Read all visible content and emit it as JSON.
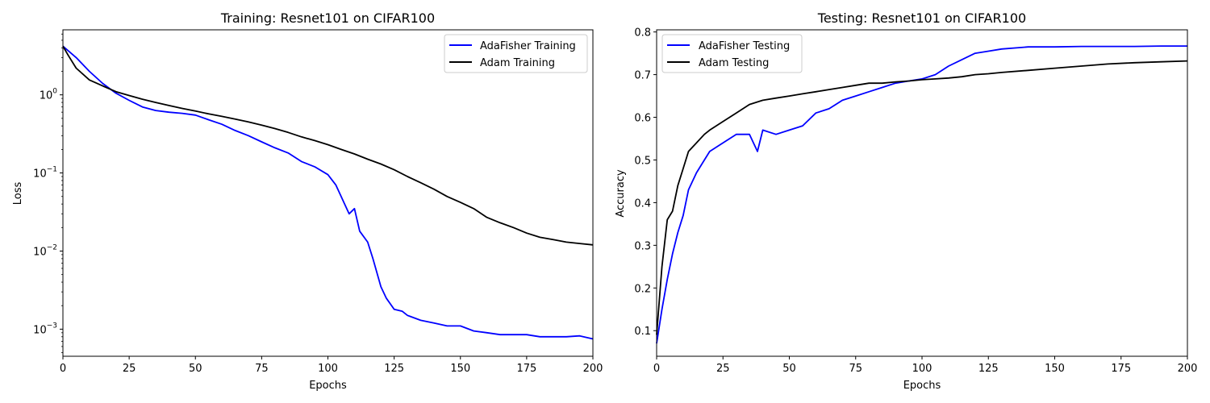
{
  "chart_data": [
    {
      "type": "line",
      "title": "Training: Resnet101 on CIFAR100",
      "xlabel": "Epochs",
      "ylabel": "Loss",
      "xlim": [
        0,
        200
      ],
      "ylim": [
        0.00045,
        6.8
      ],
      "yscale": "log",
      "xticks": [
        0,
        25,
        50,
        75,
        100,
        125,
        150,
        175,
        200
      ],
      "yticks": [
        0.001,
        0.01,
        0.1,
        1
      ],
      "ytick_labels": [
        "10",
        "10",
        "10",
        "10"
      ],
      "ytick_exponents": [
        "−3",
        "−2",
        "−1",
        "0"
      ],
      "grid": false,
      "legend": "top-right",
      "series": [
        {
          "name": "AdaFisher Training",
          "color": "#0000ff",
          "x": [
            0,
            5,
            10,
            15,
            20,
            25,
            30,
            35,
            40,
            45,
            50,
            55,
            60,
            65,
            70,
            75,
            80,
            85,
            90,
            95,
            100,
            103,
            105,
            108,
            110,
            112,
            115,
            117,
            120,
            122,
            125,
            128,
            130,
            135,
            140,
            145,
            150,
            155,
            160,
            165,
            170,
            175,
            180,
            185,
            190,
            195,
            200
          ],
          "y": [
            4.2,
            3.0,
            2.0,
            1.4,
            1.05,
            0.85,
            0.7,
            0.63,
            0.6,
            0.58,
            0.55,
            0.48,
            0.42,
            0.35,
            0.3,
            0.25,
            0.21,
            0.18,
            0.14,
            0.12,
            0.095,
            0.07,
            0.05,
            0.03,
            0.035,
            0.018,
            0.013,
            0.008,
            0.0035,
            0.0025,
            0.0018,
            0.0017,
            0.0015,
            0.0013,
            0.0012,
            0.0011,
            0.0011,
            0.00095,
            0.0009,
            0.00085,
            0.00085,
            0.00085,
            0.0008,
            0.0008,
            0.0008,
            0.00082,
            0.00075
          ]
        },
        {
          "name": "Adam Training",
          "color": "#000000",
          "x": [
            0,
            2,
            5,
            10,
            15,
            20,
            25,
            30,
            35,
            40,
            45,
            50,
            55,
            60,
            65,
            70,
            75,
            80,
            85,
            90,
            95,
            100,
            105,
            110,
            115,
            120,
            125,
            130,
            135,
            140,
            145,
            150,
            155,
            160,
            165,
            170,
            175,
            180,
            185,
            190,
            195,
            200
          ],
          "y": [
            4.2,
            3.2,
            2.2,
            1.55,
            1.3,
            1.1,
            0.98,
            0.88,
            0.8,
            0.73,
            0.67,
            0.62,
            0.57,
            0.53,
            0.49,
            0.45,
            0.41,
            0.37,
            0.33,
            0.29,
            0.26,
            0.23,
            0.2,
            0.175,
            0.15,
            0.13,
            0.11,
            0.09,
            0.075,
            0.062,
            0.05,
            0.042,
            0.035,
            0.027,
            0.023,
            0.02,
            0.017,
            0.015,
            0.014,
            0.013,
            0.0125,
            0.012
          ]
        }
      ]
    },
    {
      "type": "line",
      "title": "Testing: Resnet101 on CIFAR100",
      "xlabel": "Epochs",
      "ylabel": "Accuracy",
      "xlim": [
        0,
        200
      ],
      "ylim": [
        0.04,
        0.805
      ],
      "xticks": [
        0,
        25,
        50,
        75,
        100,
        125,
        150,
        175,
        200
      ],
      "yticks": [
        0.1,
        0.2,
        0.3,
        0.4,
        0.5,
        0.6,
        0.7,
        0.8
      ],
      "grid": false,
      "legend": "top-left",
      "series": [
        {
          "name": "AdaFisher Testing",
          "color": "#0000ff",
          "x": [
            0,
            2,
            4,
            6,
            8,
            10,
            12,
            15,
            18,
            20,
            25,
            30,
            35,
            38,
            40,
            45,
            50,
            55,
            60,
            65,
            70,
            75,
            80,
            85,
            90,
            95,
            100,
            105,
            110,
            115,
            120,
            125,
            130,
            140,
            150,
            160,
            170,
            180,
            190,
            200
          ],
          "y": [
            0.07,
            0.15,
            0.22,
            0.28,
            0.33,
            0.37,
            0.43,
            0.47,
            0.5,
            0.52,
            0.54,
            0.56,
            0.56,
            0.52,
            0.57,
            0.56,
            0.57,
            0.58,
            0.61,
            0.62,
            0.64,
            0.65,
            0.66,
            0.67,
            0.68,
            0.685,
            0.69,
            0.7,
            0.72,
            0.735,
            0.75,
            0.755,
            0.76,
            0.765,
            0.765,
            0.766,
            0.766,
            0.766,
            0.767,
            0.767
          ]
        },
        {
          "name": "Adam Testing",
          "color": "#000000",
          "x": [
            0,
            2,
            4,
            6,
            8,
            10,
            12,
            15,
            18,
            20,
            25,
            30,
            35,
            40,
            45,
            50,
            55,
            60,
            65,
            70,
            75,
            80,
            85,
            90,
            95,
            100,
            105,
            110,
            115,
            120,
            125,
            130,
            140,
            150,
            160,
            170,
            180,
            190,
            200
          ],
          "y": [
            0.09,
            0.25,
            0.36,
            0.38,
            0.44,
            0.48,
            0.52,
            0.54,
            0.56,
            0.57,
            0.59,
            0.61,
            0.63,
            0.64,
            0.645,
            0.65,
            0.655,
            0.66,
            0.665,
            0.67,
            0.675,
            0.68,
            0.68,
            0.683,
            0.685,
            0.688,
            0.69,
            0.692,
            0.695,
            0.7,
            0.702,
            0.705,
            0.71,
            0.715,
            0.72,
            0.725,
            0.728,
            0.73,
            0.732
          ]
        }
      ]
    }
  ]
}
